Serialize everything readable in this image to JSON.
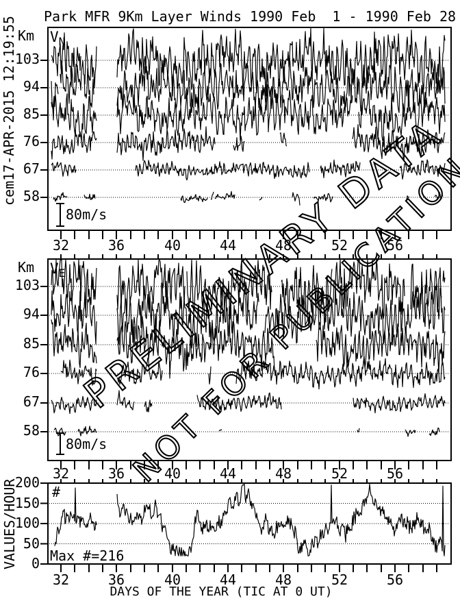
{
  "page": {
    "background": "#ffffff",
    "foreground": "#000000"
  },
  "header": {
    "title": "Park MFR 9Km Layer Winds 1990 Feb  1 - 1990 Feb 28",
    "side_timestamp": "cem17-APR-2015 12:19:55"
  },
  "watermark": {
    "line1": "PRELIMINARY DATA",
    "line2": "NOT FOR PUBLICATION"
  },
  "x_axis": {
    "title": "DAYS OF THE YEAR (TIC AT 0 UT)",
    "label_ticks": [
      32,
      36,
      40,
      44,
      48,
      52,
      56
    ],
    "minor_tick_interval_days": 1,
    "range_days": [
      31.1,
      60.0
    ]
  },
  "chart_data": [
    {
      "type": "line",
      "name": "v_north_panel",
      "panel_label": "V",
      "panel_label_sub": "N",
      "y_axis_unit": "Km",
      "layers_km": [
        103,
        94,
        85,
        76,
        67,
        58
      ],
      "scale_bar_label": "80m/s",
      "scale_bar_m_s": 80,
      "series_note": "dense noisy wind-velocity trace per altitude layer, plotted about dotted zero baselines; amplitudes estimated from plot",
      "amplitude_m_s_est": [
        82,
        73,
        63,
        41,
        24,
        14
      ],
      "coverage_est": [
        0.97,
        0.97,
        0.95,
        0.9,
        0.55,
        0.35
      ],
      "data_gap_days": [
        [
          34.6,
          36.0
        ]
      ],
      "x_extent_days": [
        31.3,
        59.6
      ]
    },
    {
      "type": "line",
      "name": "v_east_panel",
      "panel_label": "V",
      "panel_label_sub": "E",
      "y_axis_unit": "Km",
      "layers_km": [
        103,
        94,
        85,
        76,
        67,
        58
      ],
      "scale_bar_label": "80m/s",
      "scale_bar_m_s": 80,
      "series_note": "dense noisy wind-velocity trace per altitude layer, plotted about dotted zero baselines; amplitudes estimated from plot",
      "amplitude_m_s_est": [
        87,
        78,
        63,
        39,
        24,
        14
      ],
      "coverage_est": [
        0.97,
        0.96,
        0.93,
        0.8,
        0.55,
        0.3
      ],
      "data_gap_days": [
        [
          34.6,
          36.0
        ]
      ],
      "x_extent_days": [
        31.3,
        59.6
      ]
    },
    {
      "type": "line",
      "name": "values_per_hour_panel",
      "panel_label": "#",
      "ylabel": "VALUES/HOUR",
      "y_ticks": [
        0,
        50,
        100,
        150,
        200
      ],
      "y_range": [
        0,
        200
      ],
      "gridlines_at": [
        50,
        100,
        150
      ],
      "max_annotation": "Max #=216",
      "max_value": 216,
      "mean_est": 100,
      "min_est": 20,
      "data_gap_days": [
        [
          34.6,
          36.0
        ]
      ],
      "x_extent_days": [
        31.3,
        59.6
      ]
    }
  ]
}
